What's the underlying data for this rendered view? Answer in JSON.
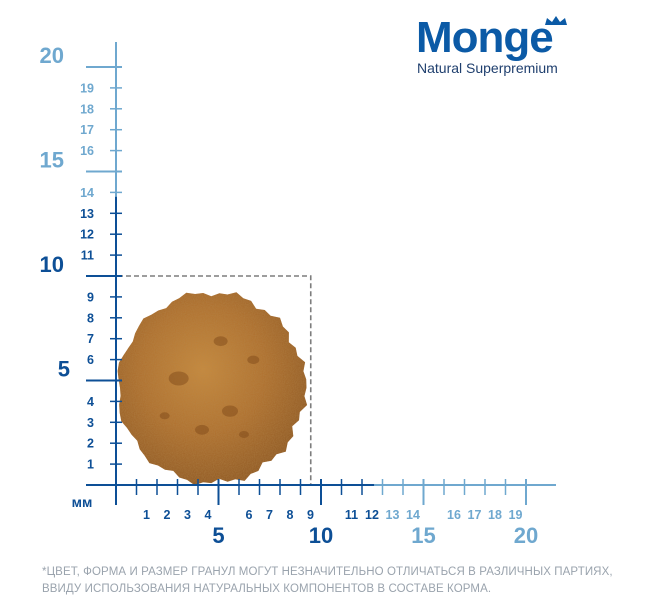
{
  "brand": {
    "name": "Monge",
    "tagline": "Natural Superpremium",
    "color": "#0b5aa6"
  },
  "ruler": {
    "unit": "мм",
    "y_labels": [
      {
        "v": 1,
        "t": "1",
        "major": false,
        "light": false
      },
      {
        "v": 2,
        "t": "2",
        "major": false,
        "light": false
      },
      {
        "v": 3,
        "t": "3",
        "major": false,
        "light": false
      },
      {
        "v": 4,
        "t": "4",
        "major": false,
        "light": false
      },
      {
        "v": 5,
        "t": "5",
        "major": true,
        "light": false
      },
      {
        "v": 6,
        "t": "6",
        "major": false,
        "light": false
      },
      {
        "v": 7,
        "t": "7",
        "major": false,
        "light": false
      },
      {
        "v": 8,
        "t": "8",
        "major": false,
        "light": false
      },
      {
        "v": 9,
        "t": "9",
        "major": false,
        "light": false
      },
      {
        "v": 10,
        "t": "10",
        "major": true,
        "light": false
      },
      {
        "v": 11,
        "t": "11",
        "major": false,
        "light": false
      },
      {
        "v": 12,
        "t": "12",
        "major": false,
        "light": false
      },
      {
        "v": 13,
        "t": "13",
        "major": false,
        "light": false
      },
      {
        "v": 14,
        "t": "14",
        "major": false,
        "light": true
      },
      {
        "v": 15,
        "t": "15",
        "major": true,
        "light": true
      },
      {
        "v": 16,
        "t": "16",
        "major": false,
        "light": true
      },
      {
        "v": 17,
        "t": "17",
        "major": false,
        "light": true
      },
      {
        "v": 18,
        "t": "18",
        "major": false,
        "light": true
      },
      {
        "v": 19,
        "t": "19",
        "major": false,
        "light": true
      },
      {
        "v": 20,
        "t": "20",
        "major": true,
        "light": true
      }
    ],
    "x_labels": [
      {
        "v": 1,
        "t": "1",
        "major": false,
        "light": false
      },
      {
        "v": 2,
        "t": "2",
        "major": false,
        "light": false
      },
      {
        "v": 3,
        "t": "3",
        "major": false,
        "light": false
      },
      {
        "v": 4,
        "t": "4",
        "major": false,
        "light": false
      },
      {
        "v": 5,
        "t": "5",
        "major": true,
        "light": false
      },
      {
        "v": 6,
        "t": "6",
        "major": false,
        "light": false
      },
      {
        "v": 7,
        "t": "7",
        "major": false,
        "light": false
      },
      {
        "v": 8,
        "t": "8",
        "major": false,
        "light": false
      },
      {
        "v": 9,
        "t": "9",
        "major": false,
        "light": false
      },
      {
        "v": 10,
        "t": "10",
        "major": true,
        "light": false
      },
      {
        "v": 11,
        "t": "11",
        "major": false,
        "light": false
      },
      {
        "v": 12,
        "t": "12",
        "major": false,
        "light": false
      },
      {
        "v": 13,
        "t": "13",
        "major": false,
        "light": true
      },
      {
        "v": 14,
        "t": "14",
        "major": false,
        "light": true
      },
      {
        "v": 15,
        "t": "15",
        "major": true,
        "light": true
      },
      {
        "v": 16,
        "t": "16",
        "major": false,
        "light": true
      },
      {
        "v": 17,
        "t": "17",
        "major": false,
        "light": true
      },
      {
        "v": 18,
        "t": "18",
        "major": false,
        "light": true
      },
      {
        "v": 19,
        "t": "19",
        "major": false,
        "light": true
      },
      {
        "v": 20,
        "t": "20",
        "major": true,
        "light": true
      }
    ],
    "dark_color": "#0d4f96",
    "light_color": "#6fa8cf",
    "kibble_size_mm": 9
  },
  "footnote": {
    "line1": "*ЦВЕТ, ФОРМА И РАЗМЕР ГРАНУЛ МОГУТ НЕЗНАЧИТЕЛЬНО ОТЛИЧАТЬСЯ В РАЗЛИЧНЫХ ПАРТИЯХ,",
    "line2": "ВВИДУ ИСПОЛЬЗОВАНИЯ НАТУРАЛЬНЫХ КОМПОНЕНТОВ В СОСТАВЕ КОРМА."
  }
}
